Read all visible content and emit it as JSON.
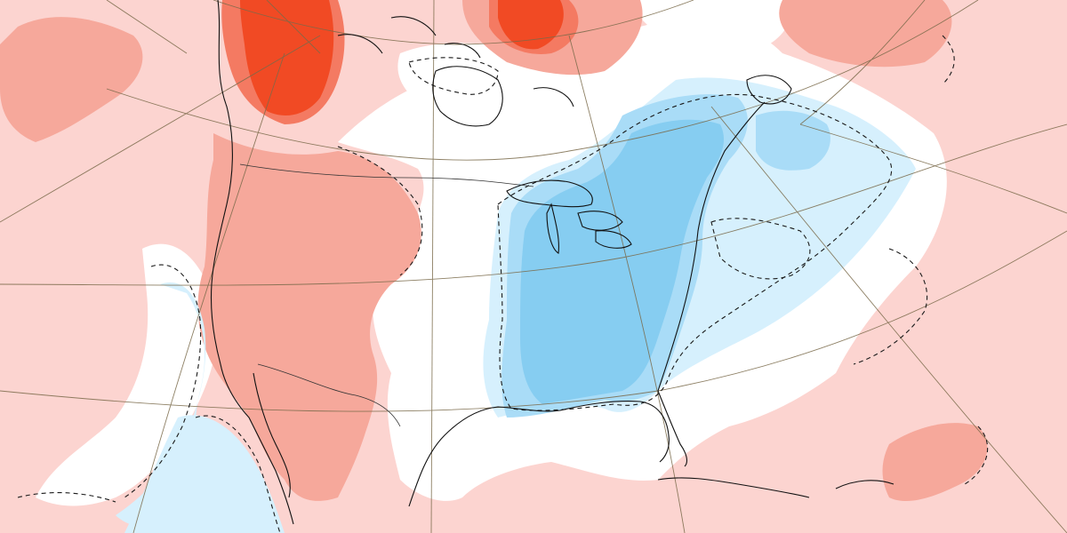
{
  "map": {
    "projection": "polar-stereographic",
    "region": "North America",
    "colors": {
      "background": "#ffffff",
      "warm_light": "#fcd4d0",
      "warm_medium": "#f6a89b",
      "warm_strong": "#f47a62",
      "warm_extreme": "#f14a24",
      "cool_light": "#d6f0fd",
      "cool_medium": "#a9dcf7",
      "cool_strong": "#86cdf1",
      "contour_line": "#1a1a1a",
      "coastline": "#111111",
      "graticule": "#7a6a4a"
    },
    "contour_style": "dashed",
    "graticule": "on"
  }
}
